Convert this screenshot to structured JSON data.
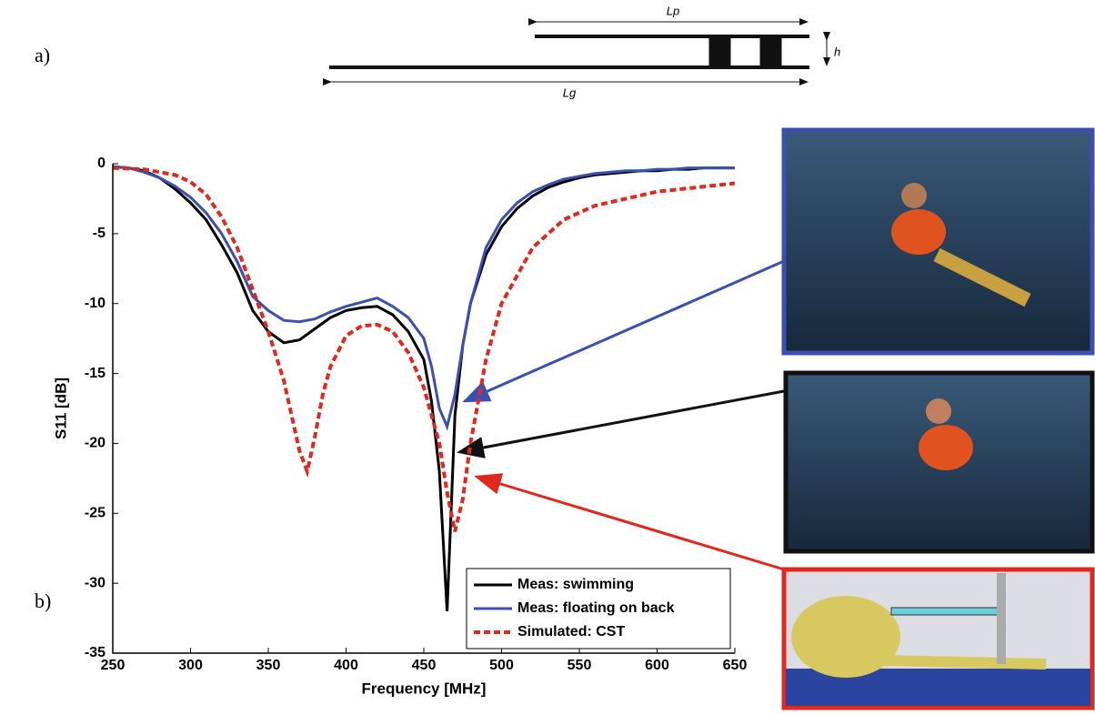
{
  "panel_labels": [
    "a)",
    "b)"
  ],
  "diagram": {
    "lp": "Lp",
    "h": "h",
    "lg": "Lg"
  },
  "chart_data": {
    "type": "line",
    "xlabel": "Frequency [MHz]",
    "ylabel": "S11 [dB]",
    "xlim": [
      250,
      650
    ],
    "ylim": [
      -35,
      0
    ],
    "xticks": [
      250,
      300,
      350,
      400,
      450,
      500,
      550,
      600,
      650
    ],
    "yticks": [
      0,
      -5,
      -10,
      -15,
      -20,
      -25,
      -30,
      -35
    ],
    "legend": "lower right",
    "series": [
      {
        "name": "Meas: swimming",
        "color": "#000000",
        "dash": false,
        "x": [
          250,
          260,
          270,
          280,
          290,
          300,
          310,
          320,
          330,
          340,
          350,
          360,
          370,
          380,
          390,
          400,
          410,
          420,
          430,
          440,
          450,
          455,
          460,
          465,
          470,
          475,
          480,
          490,
          500,
          510,
          520,
          530,
          540,
          550,
          560,
          570,
          580,
          590,
          600,
          610,
          620,
          630,
          640,
          650
        ],
        "values": [
          -0.2,
          -0.3,
          -0.5,
          -1,
          -1.8,
          -2.8,
          -4,
          -5.8,
          -7.8,
          -10.5,
          -12,
          -12.8,
          -12.6,
          -11.8,
          -11,
          -10.5,
          -10.3,
          -10.2,
          -10.8,
          -12,
          -14,
          -17,
          -22,
          -32,
          -18,
          -13,
          -10,
          -6.5,
          -4.5,
          -3.2,
          -2.3,
          -1.7,
          -1.3,
          -1,
          -0.8,
          -0.7,
          -0.6,
          -0.5,
          -0.5,
          -0.4,
          -0.4,
          -0.3,
          -0.3,
          -0.3
        ]
      },
      {
        "name": "Meas: floating on back",
        "color": "#3a4fb0",
        "dash": false,
        "x": [
          250,
          260,
          270,
          280,
          290,
          300,
          310,
          320,
          330,
          340,
          350,
          360,
          370,
          380,
          390,
          400,
          410,
          420,
          430,
          440,
          450,
          455,
          460,
          465,
          470,
          475,
          480,
          490,
          500,
          510,
          520,
          530,
          540,
          550,
          560,
          570,
          580,
          590,
          600,
          610,
          620,
          630,
          640,
          650
        ],
        "values": [
          -0.2,
          -0.3,
          -0.6,
          -1,
          -1.6,
          -2.4,
          -3.5,
          -5,
          -7,
          -9.5,
          -10.5,
          -11.2,
          -11.3,
          -11.1,
          -10.6,
          -10.2,
          -9.9,
          -9.6,
          -10.2,
          -11,
          -12.5,
          -14.5,
          -17.5,
          -18.8,
          -16.5,
          -13,
          -10,
          -6,
          -4,
          -2.8,
          -2,
          -1.5,
          -1.1,
          -0.9,
          -0.7,
          -0.6,
          -0.5,
          -0.5,
          -0.4,
          -0.4,
          -0.3,
          -0.3,
          -0.3,
          -0.3
        ]
      },
      {
        "name": "Simulated: CST",
        "color": "#e0281e",
        "dash": true,
        "x": [
          250,
          270,
          290,
          300,
          310,
          320,
          330,
          340,
          350,
          360,
          365,
          370,
          375,
          380,
          385,
          390,
          400,
          410,
          420,
          430,
          440,
          450,
          460,
          465,
          470,
          475,
          480,
          490,
          500,
          520,
          540,
          560,
          580,
          600,
          625,
          650
        ],
        "values": [
          -0.3,
          -0.4,
          -0.8,
          -1.3,
          -2.2,
          -3.8,
          -6,
          -9,
          -12,
          -15.5,
          -18,
          -20.5,
          -22,
          -19.5,
          -16.5,
          -14.5,
          -12.3,
          -11.6,
          -11.5,
          -12,
          -13.5,
          -16,
          -20,
          -23.5,
          -26.3,
          -24,
          -20,
          -14,
          -10,
          -6,
          -4,
          -3,
          -2.5,
          -2,
          -1.7,
          -1.4
        ]
      }
    ]
  }
}
